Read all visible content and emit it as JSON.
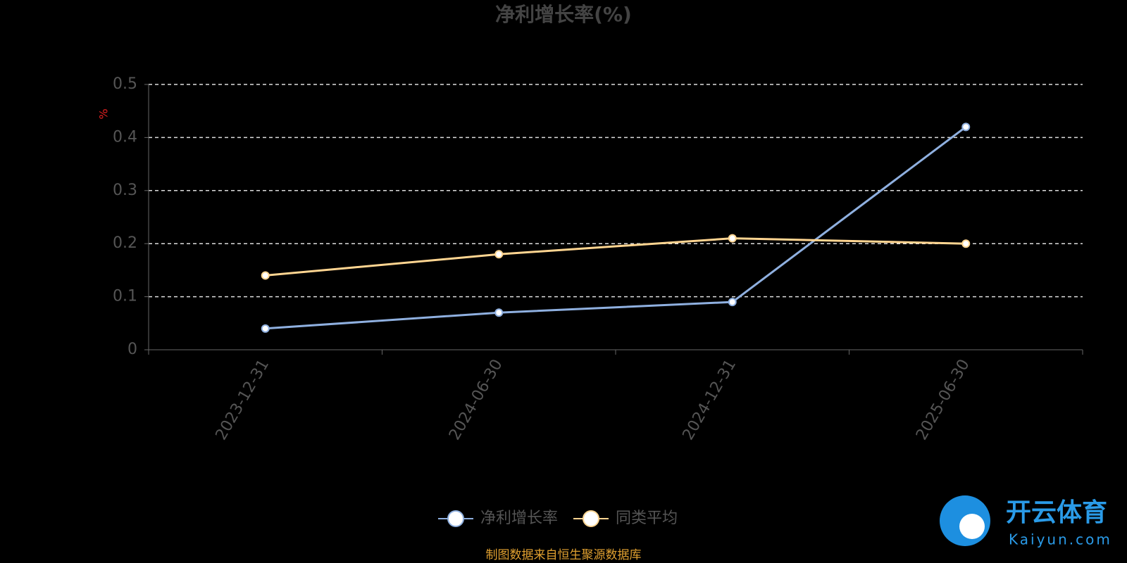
{
  "chart_data": {
    "type": "line",
    "title": "净利增长率(%)",
    "y_label": "%",
    "categories": [
      "2023-12-31",
      "2024-06-30",
      "2024-12-31",
      "2025-06-30"
    ],
    "series": [
      {
        "name": "净利增长率",
        "color": "#8fb0e0",
        "values": [
          0.04,
          0.07,
          0.09,
          0.42
        ]
      },
      {
        "name": "同类平均",
        "color": "#ffd591",
        "values": [
          0.14,
          0.18,
          0.21,
          0.2
        ]
      }
    ],
    "ylim": [
      0,
      0.5
    ],
    "yticks": [
      0,
      0.1,
      0.2,
      0.3,
      0.4,
      0.5
    ],
    "grid": true,
    "legend": "bottom",
    "source": "制图数据来自恒生聚源数据库"
  },
  "watermark": {
    "brand": "开云体育",
    "site": "Kaiyun.com"
  }
}
